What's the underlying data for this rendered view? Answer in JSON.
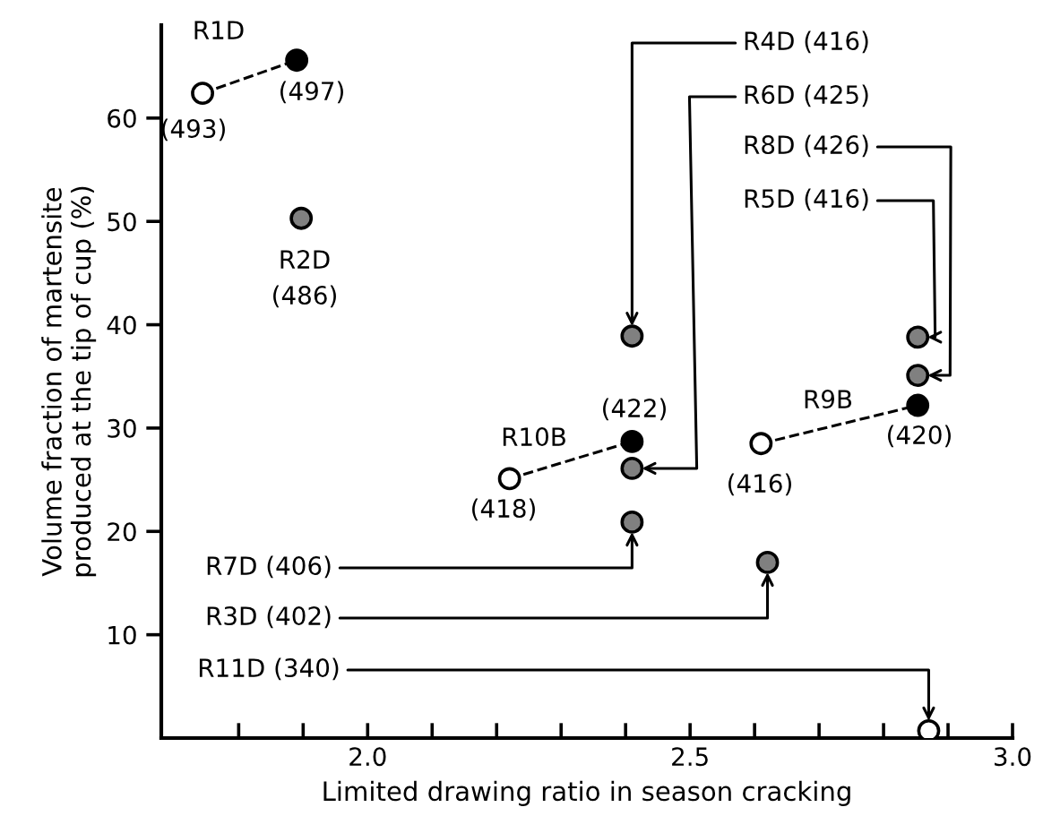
{
  "chart_data": {
    "type": "scatter",
    "xlabel": "Limited drawing ratio in season cracking",
    "ylabel": "Volume fraction of martensite\nproduced at the tip of cup (%)",
    "xlim": [
      1.68,
      3.0
    ],
    "ylim": [
      0,
      69
    ],
    "xticks": [
      {
        "value": 1.8,
        "label": null
      },
      {
        "value": 1.9,
        "label": null
      },
      {
        "value": 2.0,
        "label": "2.0"
      },
      {
        "value": 2.1,
        "label": null
      },
      {
        "value": 2.2,
        "label": null
      },
      {
        "value": 2.3,
        "label": null
      },
      {
        "value": 2.4,
        "label": null
      },
      {
        "value": 2.5,
        "label": "2.5"
      },
      {
        "value": 2.6,
        "label": null
      },
      {
        "value": 2.7,
        "label": null
      },
      {
        "value": 2.8,
        "label": null
      },
      {
        "value": 2.9,
        "label": null
      },
      {
        "value": 3.0,
        "label": "3.0"
      }
    ],
    "yticks": [
      10,
      20,
      30,
      40,
      50,
      60
    ],
    "grid": false,
    "series": [
      {
        "type": "line",
        "marker": "none",
        "line_style": "dashed",
        "color": "#000000",
        "x": [
          1.744,
          1.89
        ],
        "values": [
          62.4,
          65.6
        ]
      },
      {
        "type": "line",
        "marker": "none",
        "line_style": "dashed",
        "color": "#000000",
        "x": [
          2.22,
          2.41
        ],
        "values": [
          25.1,
          28.7
        ]
      },
      {
        "type": "line",
        "marker": "none",
        "line_style": "dashed",
        "color": "#000000",
        "x": [
          2.61,
          2.853
        ],
        "values": [
          28.5,
          32.2
        ]
      },
      {
        "marker": "circle",
        "color": "#ffffff",
        "x": [
          1.744,
          2.22,
          2.61,
          2.87
        ],
        "values": [
          62.4,
          25.1,
          28.5,
          0.7
        ]
      },
      {
        "marker": "circle",
        "color": "#000000",
        "x": [
          1.89,
          2.41,
          2.853
        ],
        "values": [
          65.6,
          28.7,
          32.2
        ]
      },
      {
        "marker": "circle",
        "color": "#808080",
        "x": [
          1.897,
          2.41,
          2.41,
          2.41,
          2.62,
          2.853,
          2.853
        ],
        "values": [
          50.3,
          38.9,
          26.1,
          20.9,
          17.0,
          38.8,
          35.1
        ]
      }
    ],
    "annotations": [
      {
        "text": "R1D",
        "x": 1.744,
        "y": 62.4
      },
      {
        "text": "(497)",
        "x": 1.89,
        "y": 65.6
      },
      {
        "text": "(493)",
        "x": 1.744,
        "y": 62.4
      },
      {
        "text": "R2D",
        "x": 1.897,
        "y": 50.3
      },
      {
        "text": "(486)",
        "x": 1.897,
        "y": 50.3
      },
      {
        "text": "R4D (416)",
        "x": 2.41,
        "y": 38.9
      },
      {
        "text": "R6D (425)",
        "x": 2.41,
        "y": 26.1
      },
      {
        "text": "R8D (426)",
        "x": 2.853,
        "y": 35.1
      },
      {
        "text": "R5D (416)",
        "x": 2.853,
        "y": 38.8
      },
      {
        "text": "R10B",
        "x": 2.22,
        "y": 25.1
      },
      {
        "text": "(422)",
        "x": 2.41,
        "y": 28.7
      },
      {
        "text": "(418)",
        "x": 2.22,
        "y": 25.1
      },
      {
        "text": "R9B",
        "x": 2.853,
        "y": 32.2
      },
      {
        "text": "(420)",
        "x": 2.853,
        "y": 32.2
      },
      {
        "text": "(416)",
        "x": 2.61,
        "y": 28.5
      },
      {
        "text": "R7D (406)",
        "x": 2.41,
        "y": 20.9
      },
      {
        "text": "R3D (402)",
        "x": 2.62,
        "y": 17.0
      },
      {
        "text": "R11D (340)",
        "x": 2.87,
        "y": 0.7
      }
    ]
  }
}
